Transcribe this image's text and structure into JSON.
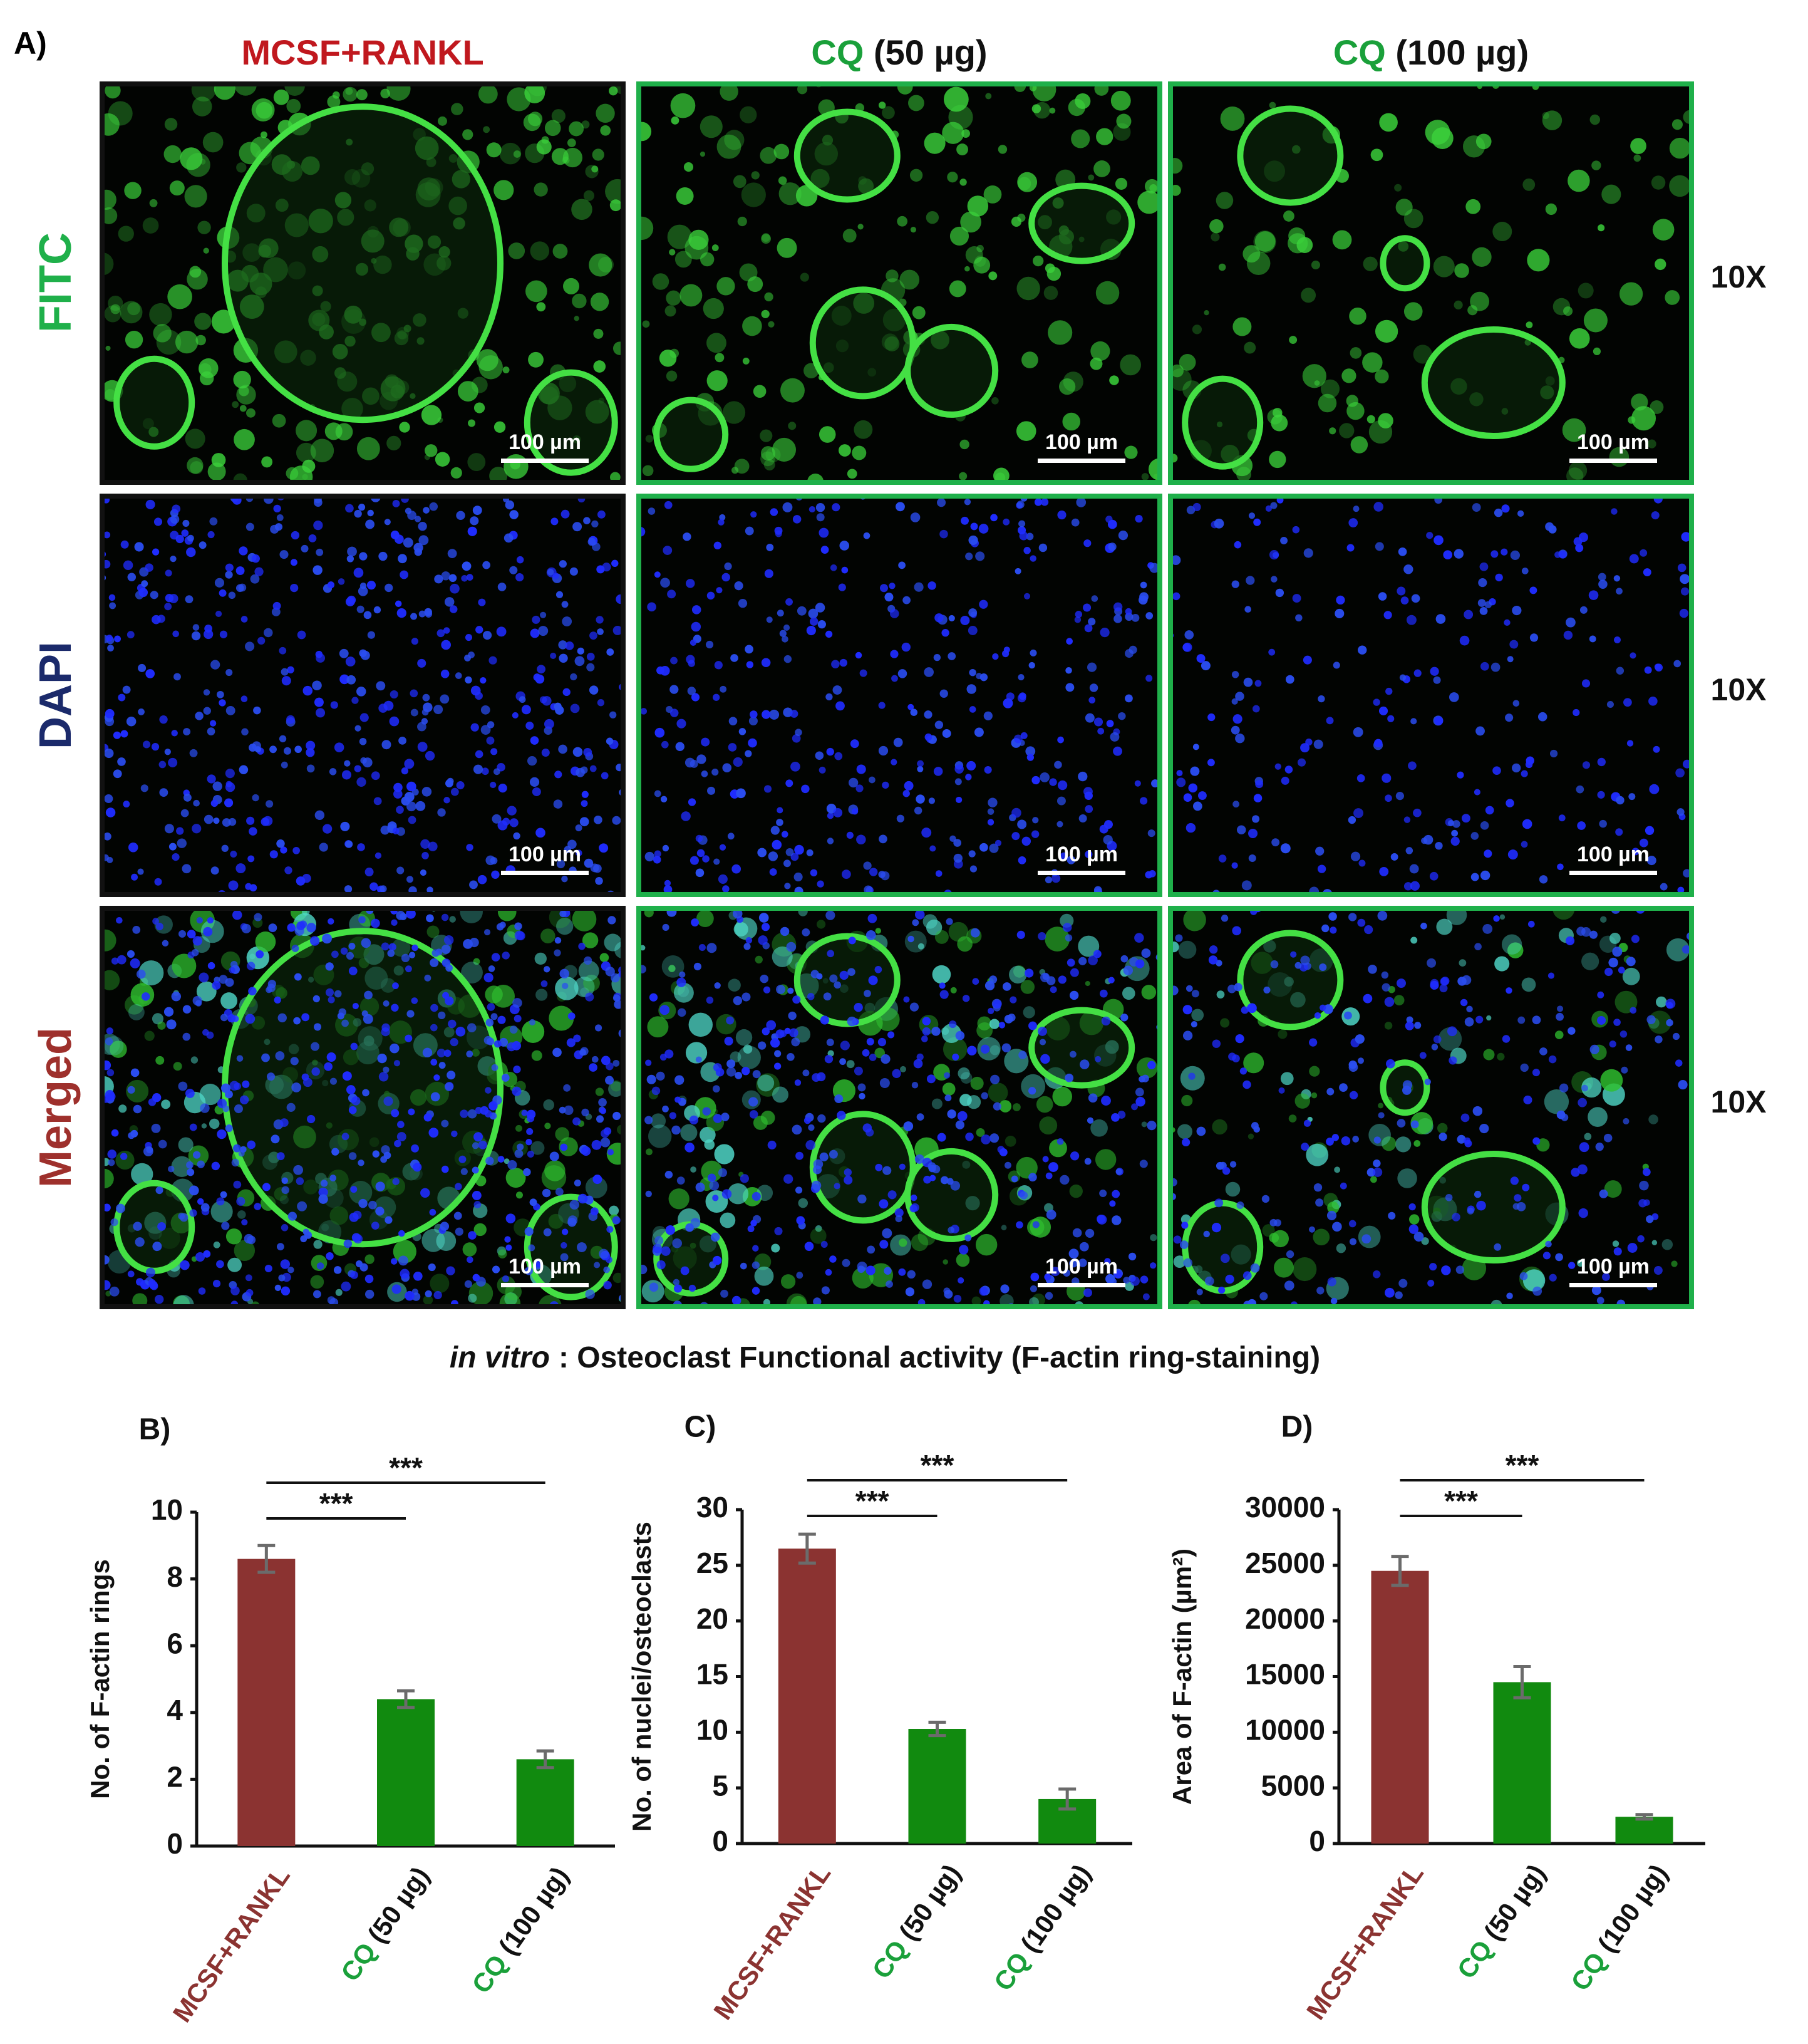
{
  "panel_a": {
    "label": "A)",
    "columns": [
      "MCSF+RANKL",
      "CQ (50 µg)",
      "CQ (100 µg)"
    ],
    "rows": [
      "FITC",
      "DAPI",
      "Merged"
    ],
    "magnification": "10X",
    "scale_bar": "100 µm",
    "caption": {
      "italic": "in vitro",
      "text": ": Osteoclast Functional activity (F-actin ring-staining)"
    }
  },
  "chart_data": [
    {
      "type": "bar",
      "label": "B)",
      "ylabel": "No. of F-actin rings",
      "categories": [
        "MCSF+RANKL",
        "CQ (50 µg)",
        "CQ (100 µg)"
      ],
      "values": [
        8.6,
        4.4,
        2.6
      ],
      "errors": [
        0.4,
        0.25,
        0.25
      ],
      "colors": [
        "#8b3331",
        "#118a0f",
        "#118a0f"
      ],
      "ylim": [
        0,
        10
      ],
      "yticks": [
        0,
        2,
        4,
        6,
        8,
        10
      ],
      "significance": [
        {
          "label": "***",
          "pair": [
            0,
            1
          ]
        },
        {
          "label": "***",
          "pair": [
            0,
            2
          ]
        }
      ]
    },
    {
      "type": "bar",
      "label": "C)",
      "ylabel": "No. of nuclei/osteoclasts",
      "categories": [
        "MCSF+RANKL",
        "CQ (50 µg)",
        "CQ (100 µg)"
      ],
      "values": [
        26.5,
        10.3,
        4.0
      ],
      "errors": [
        1.3,
        0.6,
        0.9
      ],
      "colors": [
        "#8b3331",
        "#118a0f",
        "#118a0f"
      ],
      "ylim": [
        0,
        30
      ],
      "yticks": [
        0,
        5,
        10,
        15,
        20,
        25,
        30
      ],
      "significance": [
        {
          "label": "***",
          "pair": [
            0,
            1
          ]
        },
        {
          "label": "***",
          "pair": [
            0,
            2
          ]
        }
      ]
    },
    {
      "type": "bar",
      "label": "D)",
      "ylabel": "Area of F-actin (µm²)",
      "categories": [
        "MCSF+RANKL",
        "CQ (50 µg)",
        "CQ (100 µg)"
      ],
      "values": [
        24500,
        14500,
        2400
      ],
      "errors": [
        1300,
        1400,
        200
      ],
      "colors": [
        "#8b3331",
        "#118a0f",
        "#118a0f"
      ],
      "ylim": [
        0,
        30000
      ],
      "yticks": [
        0,
        5000,
        10000,
        15000,
        20000,
        25000,
        30000
      ],
      "significance": [
        {
          "label": "***",
          "pair": [
            0,
            1
          ]
        },
        {
          "label": "***",
          "pair": [
            0,
            2
          ]
        }
      ]
    }
  ]
}
